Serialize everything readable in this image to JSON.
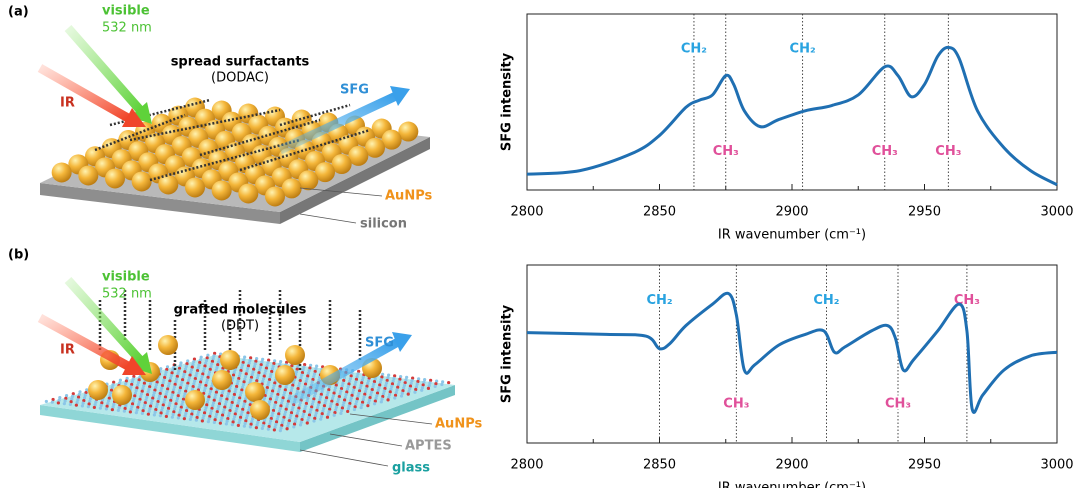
{
  "illustrations": [
    {
      "tag": "(a)",
      "visible": "visible",
      "wavelength": "532 nm",
      "ir": "IR",
      "sfg": "SFG",
      "molecules": "spread surfactants",
      "molecule_name": "(DODAC)",
      "particles": "AuNPs",
      "substrate": "silicon"
    },
    {
      "tag": "(b)",
      "visible": "visible",
      "wavelength": "532 nm",
      "ir": "IR",
      "sfg": "SFG",
      "molecules": "grafted molecules",
      "molecule_name": "(DDT)",
      "particles": "AuNPs",
      "linker": "APTES",
      "substrate": "glass"
    }
  ],
  "chart_data": [
    {
      "type": "line",
      "xlabel": "IR wavenumber (cm⁻¹)",
      "ylabel": "SFG intensity",
      "xlim": [
        2800,
        3000
      ],
      "xticks": [
        2800,
        2850,
        2900,
        2950,
        3000
      ],
      "xminorticks": [
        2825,
        2875,
        2925,
        2975
      ],
      "ylim": [
        0,
        1
      ],
      "series": [
        {
          "color": "#1f6fb2",
          "x": [
            2800,
            2820,
            2840,
            2850,
            2860,
            2865,
            2870,
            2875,
            2878,
            2882,
            2888,
            2895,
            2905,
            2915,
            2925,
            2935,
            2940,
            2945,
            2950,
            2955,
            2959,
            2963,
            2970,
            2980,
            2990,
            3000
          ],
          "values": [
            0.09,
            0.11,
            0.21,
            0.31,
            0.47,
            0.51,
            0.54,
            0.65,
            0.6,
            0.45,
            0.36,
            0.4,
            0.45,
            0.48,
            0.54,
            0.7,
            0.65,
            0.53,
            0.6,
            0.76,
            0.81,
            0.75,
            0.45,
            0.24,
            0.11,
            0.03
          ]
        }
      ],
      "annotations": [
        {
          "x": 2863,
          "label": "CH₂",
          "side": "top",
          "color": "#29a3e0"
        },
        {
          "x": 2875,
          "label": "CH₃",
          "side": "bottom",
          "color": "#e0509a"
        },
        {
          "x": 2904,
          "label": "CH₂",
          "side": "top",
          "color": "#29a3e0"
        },
        {
          "x": 2935,
          "label": "CH₃",
          "side": "bottom",
          "color": "#e0509a"
        },
        {
          "x": 2959,
          "label": "CH₃",
          "side": "bottom",
          "color": "#e0509a"
        }
      ]
    },
    {
      "type": "line",
      "xlabel": "IR wavenumber (cm⁻¹)",
      "ylabel": "SFG intensity",
      "xlim": [
        2800,
        3000
      ],
      "xticks": [
        2800,
        2850,
        2900,
        2950,
        3000
      ],
      "xminorticks": [
        2825,
        2875,
        2925,
        2975
      ],
      "ylim": [
        0,
        1
      ],
      "series": [
        {
          "color": "#1f6fb2",
          "x": [
            2800,
            2830,
            2845,
            2850,
            2854,
            2860,
            2870,
            2876,
            2879,
            2882,
            2886,
            2895,
            2905,
            2912,
            2916,
            2920,
            2930,
            2936,
            2939,
            2942,
            2946,
            2955,
            2963,
            2966,
            2968,
            2972,
            2980,
            2990,
            3000
          ],
          "values": [
            0.62,
            0.61,
            0.6,
            0.53,
            0.56,
            0.66,
            0.78,
            0.84,
            0.72,
            0.41,
            0.44,
            0.55,
            0.61,
            0.63,
            0.51,
            0.54,
            0.63,
            0.66,
            0.59,
            0.41,
            0.47,
            0.63,
            0.78,
            0.63,
            0.19,
            0.27,
            0.41,
            0.49,
            0.51
          ]
        }
      ],
      "annotations": [
        {
          "x": 2850,
          "label": "CH₂",
          "side": "top",
          "color": "#29a3e0"
        },
        {
          "x": 2879,
          "label": "CH₃",
          "side": "bottom",
          "color": "#e0509a"
        },
        {
          "x": 2913,
          "label": "CH₂",
          "side": "top",
          "color": "#29a3e0"
        },
        {
          "x": 2940,
          "label": "CH₃",
          "side": "bottom",
          "color": "#e0509a"
        },
        {
          "x": 2966,
          "label": "CH₃",
          "side": "top",
          "color": "#e0509a"
        }
      ]
    }
  ]
}
